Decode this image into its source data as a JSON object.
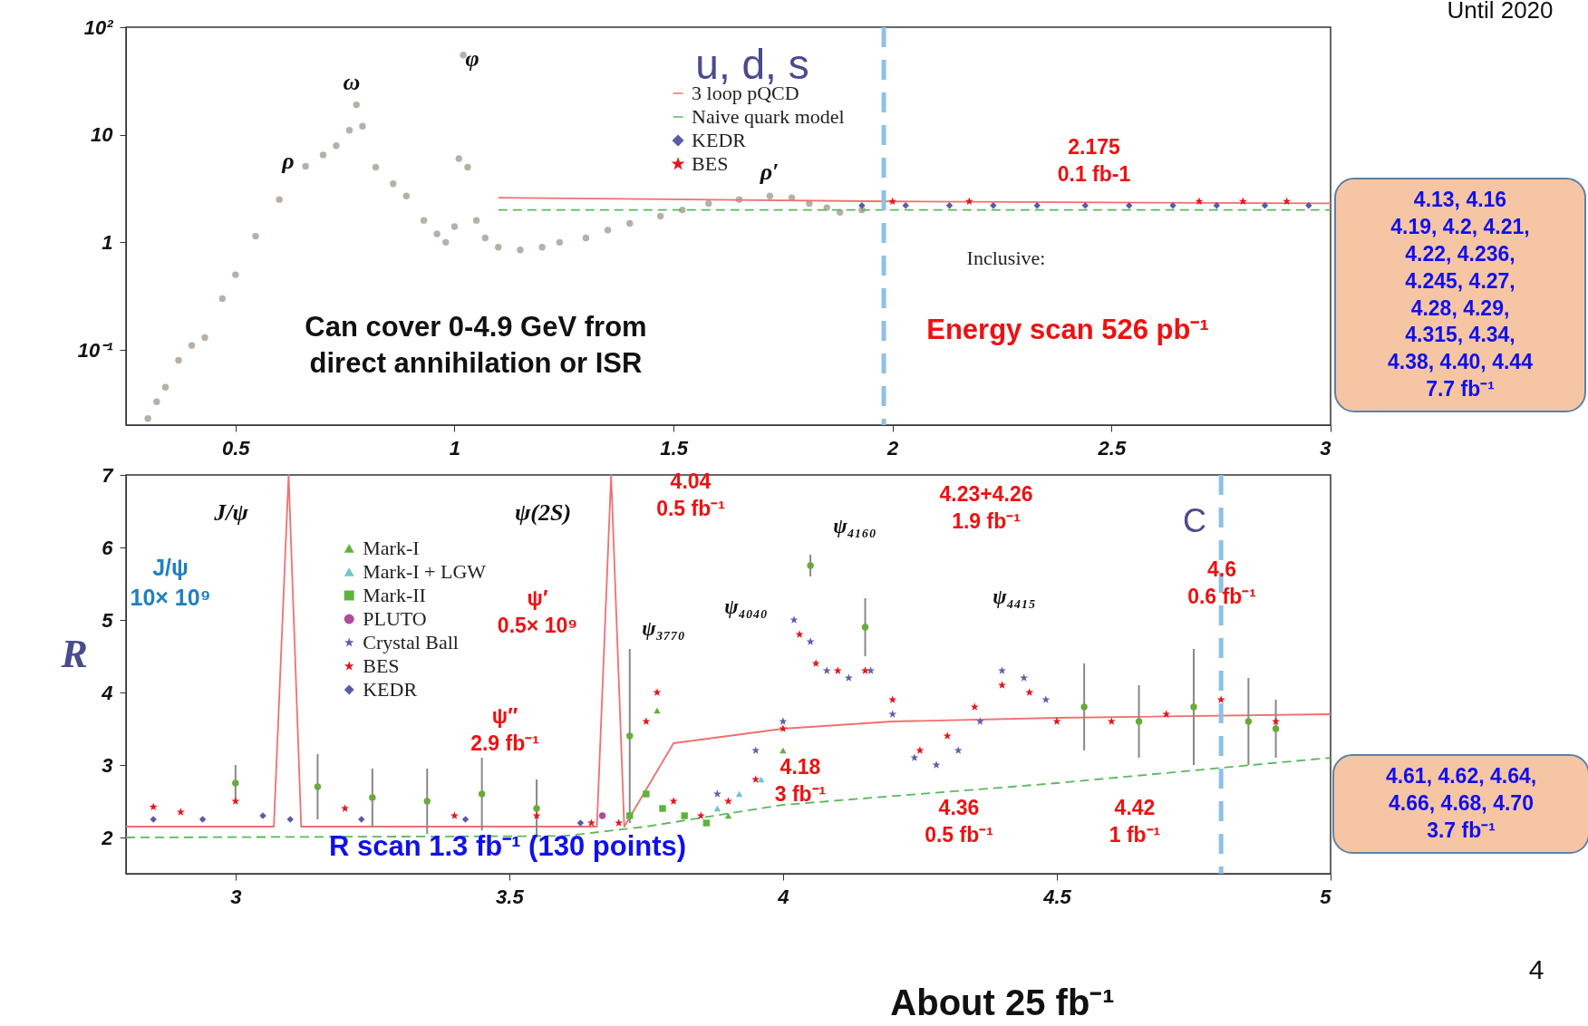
{
  "chart_data": [
    {
      "type": "scatter",
      "log": true,
      "xlim": [
        0.25,
        3.0
      ],
      "ylim": [
        0.02,
        100
      ],
      "xticks": [
        0.5,
        1,
        1.5,
        2,
        2.5,
        3
      ],
      "yticks": [
        {
          "value": 100,
          "label": "10²"
        },
        10,
        1,
        {
          "value": 0.1,
          "label": "10⁻¹"
        }
      ],
      "legend": "top",
      "grid": false,
      "series": [
        {
          "color": "#b8b0a8",
          "marker": "circle",
          "x": [
            0.3,
            0.32,
            0.34,
            0.37,
            0.4,
            0.43,
            0.47,
            0.5,
            0.546,
            0.6,
            0.66,
            0.7,
            0.73,
            0.76,
            0.776,
            0.79,
            0.82,
            0.86,
            0.89,
            0.93,
            0.96,
            0.98,
            1.0,
            1.01,
            1.02,
            1.03,
            1.05,
            1.07,
            1.1,
            1.15,
            1.2,
            1.24,
            1.3,
            1.35,
            1.4,
            1.47,
            1.52,
            1.58,
            1.65,
            1.72,
            1.77,
            1.81,
            1.85,
            1.88,
            1.93
          ],
          "values": [
            0.023,
            0.033,
            0.045,
            0.08,
            0.11,
            0.13,
            0.3,
            0.5,
            1.14,
            2.5,
            5.1,
            6.5,
            7.9,
            11,
            19,
            12,
            5,
            3.5,
            2.7,
            1.6,
            1.2,
            1.0,
            1.4,
            6,
            55,
            5,
            1.6,
            1.1,
            0.9,
            0.85,
            0.9,
            1.0,
            1.1,
            1.3,
            1.5,
            1.75,
            2.0,
            2.3,
            2.5,
            2.7,
            2.6,
            2.3,
            2.1,
            1.9,
            2.0
          ]
        },
        {
          "name": "3 loop pQCD",
          "type": "line",
          "color": "#f07070",
          "x": [
            1.1,
            2.0,
            3.0
          ],
          "values": [
            2.6,
            2.4,
            2.3
          ]
        },
        {
          "name": "Naive quark model",
          "type": "line",
          "line_style": "dashed",
          "color": "#5cb85c",
          "x": [
            1.1,
            3.0
          ],
          "values": [
            2.0,
            2.0
          ]
        },
        {
          "name": "KEDR",
          "marker": "diamond",
          "color": "#5a5aa8",
          "x": [
            1.93,
            2.03,
            2.13,
            2.23,
            2.33,
            2.44,
            2.54,
            2.64,
            2.74,
            2.85,
            2.95
          ],
          "values": [
            2.2,
            2.2,
            2.2,
            2.2,
            2.2,
            2.2,
            2.2,
            2.2,
            2.2,
            2.2,
            2.2
          ]
        },
        {
          "name": "BES",
          "marker": "star",
          "color": "#e8141c",
          "x": [
            2.0,
            2.175,
            2.7,
            2.8,
            2.9
          ],
          "values": [
            2.4,
            2.4,
            2.4,
            2.4,
            2.4
          ]
        }
      ],
      "ref_lines": [
        {
          "axis": "x",
          "value": 1.98,
          "color": "#8fc0e8",
          "line_style": "dashed"
        }
      ],
      "annotations": [
        "ρ",
        "ω",
        "φ",
        "ρ′",
        "u, d, s",
        "Inclusive:",
        "Energy scan 526 pb⁻¹",
        "Can cover 0-4.9 GeV from\ndirect annihilation or ISR",
        "2.175\n0.1 fb-1",
        "Until 2020",
        "4.13, 4.16\n4.19, 4.2, 4.21,\n4.22, 4.236,\n4.245, 4.27,\n4.28, 4.29,\n4.315, 4.34,\n4.38, 4.40, 4.44\n7.7 fb⁻¹"
      ]
    },
    {
      "type": "scatter",
      "xlim": [
        2.8,
        5.0
      ],
      "ylim": [
        1.5,
        7
      ],
      "xticks": [
        3,
        3.5,
        4,
        4.5,
        5
      ],
      "yticks": [
        2,
        3,
        4,
        5,
        6,
        7
      ],
      "ylabel": "R",
      "legend": "top left",
      "grid": false,
      "series": [
        {
          "type": "line",
          "color": "#f07070",
          "x": [
            2.8,
            3.07,
            3.097,
            3.12,
            3.66,
            3.686,
            3.71,
            3.8,
            3.9,
            4.0,
            4.2,
            4.5,
            5.0
          ],
          "values": [
            2.15,
            2.15,
            7,
            2.15,
            2.15,
            7,
            2.15,
            3.3,
            3.4,
            3.5,
            3.6,
            3.65,
            3.7
          ]
        },
        {
          "type": "line",
          "line_style": "dashed",
          "color": "#5cb85c",
          "x": [
            2.8,
            3.6,
            3.75,
            4.0,
            4.5,
            5.0
          ],
          "values": [
            2.0,
            2.02,
            2.15,
            2.45,
            2.75,
            3.1
          ]
        },
        {
          "color": "#6aaa3a",
          "marker": "circle",
          "x": [
            3.0,
            3.15,
            3.25,
            3.35,
            3.45,
            3.55,
            3.72,
            4.05,
            4.15,
            4.55,
            4.65,
            4.75,
            4.85,
            4.9
          ],
          "values": [
            2.75,
            2.7,
            2.55,
            2.5,
            2.6,
            2.4,
            3.4,
            5.75,
            4.9,
            3.8,
            3.6,
            3.8,
            3.6,
            3.5
          ],
          "errors": [
            0.25,
            0.45,
            0.4,
            0.45,
            0.5,
            0.4,
            1.2,
            0.15,
            0.4,
            0.6,
            0.5,
            0.8,
            0.6,
            0.4
          ]
        },
        {
          "name": "Mark-I",
          "marker": "triangle",
          "color": "#5db33d",
          "x": [
            3.77,
            3.9,
            4.0
          ],
          "values": [
            3.75,
            2.3,
            3.2
          ]
        },
        {
          "name": "Mark-I + LGW",
          "marker": "triangle",
          "color": "#6cc5d0",
          "x": [
            3.88,
            3.92,
            3.96
          ],
          "values": [
            2.4,
            2.6,
            2.8
          ]
        },
        {
          "name": "Mark-II",
          "marker": "square",
          "color": "#5db33d",
          "x": [
            3.72,
            3.75,
            3.78,
            3.82,
            3.86
          ],
          "values": [
            2.3,
            2.6,
            2.4,
            2.3,
            2.2
          ]
        },
        {
          "name": "PLUTO",
          "marker": "circle",
          "color": "#b04a9a",
          "x": [
            3.67
          ],
          "values": [
            2.3
          ]
        },
        {
          "name": "Crystal Ball",
          "marker": "star",
          "color": "#6060b0",
          "x": [
            3.88,
            3.95,
            4.0,
            4.02,
            4.05,
            4.08,
            4.12,
            4.16,
            4.2,
            4.24,
            4.28,
            4.32,
            4.36,
            4.4,
            4.44,
            4.48
          ],
          "values": [
            2.6,
            3.2,
            3.6,
            5.0,
            4.7,
            4.3,
            4.2,
            4.3,
            3.7,
            3.1,
            3.0,
            3.2,
            3.6,
            4.3,
            4.2,
            3.9
          ]
        },
        {
          "name": "BES",
          "marker": "star",
          "color": "#e8141c",
          "x": [
            2.85,
            2.9,
            3.0,
            3.2,
            3.4,
            3.55,
            3.65,
            3.7,
            3.75,
            3.77,
            3.8,
            3.85,
            3.9,
            3.95,
            4.0,
            4.03,
            4.06,
            4.1,
            4.15,
            4.2,
            4.25,
            4.3,
            4.35,
            4.4,
            4.45,
            4.5,
            4.6,
            4.7,
            4.8,
            4.9
          ],
          "values": [
            2.42,
            2.35,
            2.5,
            2.4,
            2.3,
            2.3,
            2.2,
            2.2,
            3.6,
            4.0,
            2.5,
            2.3,
            2.5,
            2.8,
            3.5,
            4.8,
            4.4,
            4.3,
            4.3,
            3.9,
            3.2,
            3.4,
            3.8,
            4.1,
            4.0,
            3.6,
            3.6,
            3.7,
            3.9,
            3.6
          ]
        },
        {
          "name": "KEDR",
          "marker": "diamond",
          "color": "#5a5aa8",
          "x": [
            2.85,
            2.94,
            3.05,
            3.1,
            3.23,
            3.42,
            3.63
          ],
          "values": [
            2.25,
            2.25,
            2.3,
            2.25,
            2.25,
            2.25,
            2.2
          ]
        }
      ],
      "ref_lines": [
        {
          "axis": "x",
          "value": 4.8,
          "color": "#8fc0e8",
          "line_style": "dashed"
        }
      ],
      "annotations": [
        "J/ψ",
        "ψ(2S)",
        "ψ₃₇₇₀",
        "ψ₄₀₄₀",
        "ψ₄₁₆₀",
        "ψ₄₄₁₅",
        "C",
        "J/ψ\n10× 10⁹",
        "ψ′\n0.5× 10⁹",
        "ψ″\n2.9 fb⁻¹",
        "4.04\n0.5 fb⁻¹",
        "4.23+4.26\n1.9 fb⁻¹",
        "4.18\n3 fb⁻¹",
        "4.36\n0.5 fb⁻¹",
        "4.42\n1 fb⁻¹",
        "4.6\n0.6 fb⁻¹",
        "R scan 1.3 fb⁻¹ (130 points)",
        "4.61, 4.62, 4.64,\n4.66, 4.68, 4.70\n3.7 fb⁻¹",
        "About 25 fb⁻¹",
        "4"
      ]
    }
  ]
}
